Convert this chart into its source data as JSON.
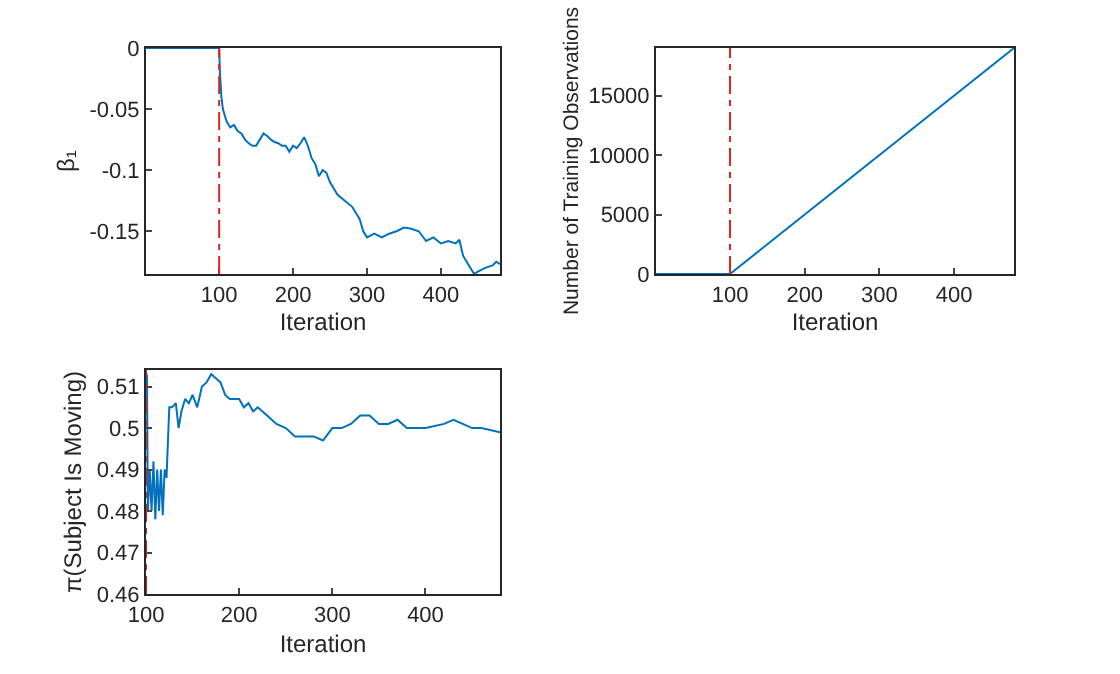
{
  "chart_data": [
    {
      "type": "line",
      "xlabel": "Iteration",
      "ylabel": "β₁",
      "xlim": [
        1,
        480
      ],
      "xticks": [
        100,
        200,
        300,
        400
      ],
      "ylim": [
        -0.185,
        0
      ],
      "yticks": [
        -0.15,
        -0.1,
        -0.05,
        0
      ],
      "series": [
        {
          "color": "#0072bd",
          "x": [
            1,
            100,
            101,
            103,
            105,
            110,
            115,
            120,
            125,
            130,
            135,
            140,
            145,
            150,
            155,
            160,
            165,
            170,
            175,
            180,
            185,
            190,
            195,
            200,
            205,
            210,
            215,
            220,
            225,
            230,
            235,
            240,
            245,
            250,
            260,
            270,
            280,
            290,
            295,
            300,
            310,
            320,
            330,
            340,
            350,
            360,
            370,
            380,
            390,
            400,
            410,
            420,
            425,
            430,
            440,
            445,
            450,
            460,
            470,
            475,
            480
          ],
          "values": [
            0,
            0,
            -0.02,
            -0.04,
            -0.05,
            -0.06,
            -0.065,
            -0.063,
            -0.068,
            -0.07,
            -0.075,
            -0.078,
            -0.08,
            -0.08,
            -0.075,
            -0.07,
            -0.072,
            -0.075,
            -0.077,
            -0.078,
            -0.08,
            -0.08,
            -0.085,
            -0.08,
            -0.082,
            -0.078,
            -0.073,
            -0.08,
            -0.09,
            -0.095,
            -0.105,
            -0.1,
            -0.102,
            -0.11,
            -0.12,
            -0.125,
            -0.13,
            -0.14,
            -0.15,
            -0.155,
            -0.152,
            -0.155,
            -0.152,
            -0.15,
            -0.147,
            -0.148,
            -0.15,
            -0.158,
            -0.155,
            -0.16,
            -0.158,
            -0.16,
            -0.157,
            -0.17,
            -0.18,
            -0.185,
            -0.183,
            -0.18,
            -0.178,
            -0.175,
            -0.177
          ]
        }
      ],
      "ref_lines": [
        {
          "axis": "x",
          "value": 100,
          "color": "#d62728",
          "line_style": "dashed"
        }
      ]
    },
    {
      "type": "line",
      "xlabel": "Iteration",
      "ylabel": "Number of Training Observations",
      "xlim": [
        1,
        480
      ],
      "xticks": [
        100,
        200,
        300,
        400
      ],
      "ylim": [
        0,
        19000
      ],
      "yticks": [
        0,
        5000,
        10000,
        15000
      ],
      "series": [
        {
          "color": "#0072bd",
          "x": [
            1,
            100,
            480
          ],
          "values": [
            0,
            0,
            19000
          ]
        }
      ],
      "ref_lines": [
        {
          "axis": "x",
          "value": 100,
          "color": "#d62728",
          "line_style": "dashed"
        }
      ]
    },
    {
      "type": "line",
      "xlabel": "Iteration",
      "ylabel": "π(Subject Is Moving)",
      "xlim": [
        100,
        480
      ],
      "xticks": [
        100,
        200,
        300,
        400
      ],
      "ylim": [
        0.46,
        0.514
      ],
      "yticks": [
        0.46,
        0.47,
        0.48,
        0.49,
        0.5,
        0.51
      ],
      "series": [
        {
          "color": "#0072bd",
          "x": [
            101,
            102,
            104,
            106,
            108,
            110,
            112,
            114,
            116,
            118,
            120,
            122,
            125,
            128,
            132,
            135,
            138,
            142,
            146,
            150,
            155,
            160,
            165,
            170,
            175,
            180,
            185,
            190,
            200,
            205,
            210,
            215,
            220,
            230,
            240,
            250,
            260,
            270,
            280,
            290,
            300,
            310,
            320,
            330,
            340,
            350,
            360,
            370,
            380,
            390,
            400,
            420,
            430,
            440,
            450,
            460,
            480
          ],
          "values": [
            0.513,
            0.48,
            0.49,
            0.48,
            0.492,
            0.478,
            0.49,
            0.48,
            0.49,
            0.479,
            0.49,
            0.488,
            0.505,
            0.505,
            0.506,
            0.5,
            0.504,
            0.507,
            0.506,
            0.508,
            0.505,
            0.51,
            0.511,
            0.513,
            0.512,
            0.511,
            0.508,
            0.507,
            0.507,
            0.505,
            0.506,
            0.504,
            0.505,
            0.503,
            0.501,
            0.5,
            0.498,
            0.498,
            0.498,
            0.497,
            0.5,
            0.5,
            0.501,
            0.503,
            0.503,
            0.501,
            0.501,
            0.502,
            0.5,
            0.5,
            0.5,
            0.501,
            0.502,
            0.501,
            0.5,
            0.5,
            0.499
          ]
        }
      ],
      "ref_lines": [
        {
          "axis": "x",
          "value": 100,
          "color": "#d62728",
          "line_style": "dashed"
        }
      ]
    }
  ]
}
